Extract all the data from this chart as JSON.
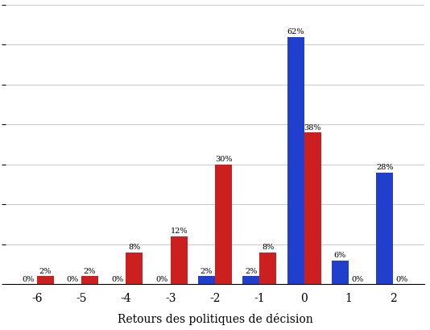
{
  "categories": [
    -6,
    -5,
    -4,
    -3,
    -2,
    -1,
    0,
    1,
    2
  ],
  "blue_values": [
    0,
    0,
    0,
    0,
    2,
    2,
    62,
    6,
    28
  ],
  "red_values": [
    2,
    2,
    8,
    12,
    30,
    8,
    38,
    0,
    0
  ],
  "blue_color": "#1f3fcc",
  "red_color": "#cc1f1f",
  "xlabel": "Retours des politiques de décision",
  "bar_width": 0.38,
  "ylim": [
    0,
    70
  ],
  "background_color": "#ffffff",
  "grid_color": "#cccccc"
}
